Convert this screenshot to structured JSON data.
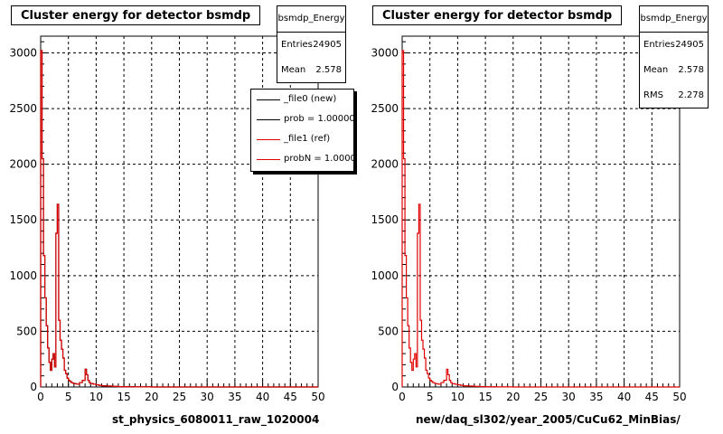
{
  "panels": [
    {
      "title": "Cluster energy for detector bsmdp",
      "x_title": "st_physics_6080011_raw_1020004",
      "stats": {
        "name": "bsmdp_Energy",
        "rows": [
          {
            "key": "Entries",
            "value": "24905"
          },
          {
            "key": "Mean",
            "value": "2.578"
          }
        ]
      },
      "legend": {
        "items": [
          {
            "label": "_file0 (new)",
            "color": "#000000"
          },
          {
            "label": "prob = 1.000000",
            "color": "#000000"
          },
          {
            "label": "_file1 (ref)",
            "color": "#e00000"
          },
          {
            "label": "probN = 1.000000",
            "color": "#e00000"
          }
        ]
      }
    },
    {
      "title": "Cluster energy for detector bsmdp",
      "x_title": "new/daq_sl302/year_2005/CuCu62_MinBias/",
      "stats": {
        "name": "bsmdp_Energy",
        "rows": [
          {
            "key": "Entries",
            "value": "24905"
          },
          {
            "key": "Mean",
            "value": "2.578"
          },
          {
            "key": "RMS",
            "value": "2.278"
          }
        ]
      }
    }
  ],
  "chart_data": [
    {
      "type": "line",
      "title": "Cluster energy for detector bsmdp",
      "xlabel": "st_physics_6080011_raw_1020004",
      "ylabel": "",
      "xlim": [
        0,
        50
      ],
      "ylim": [
        0,
        3150
      ],
      "xticks": [
        0,
        5,
        10,
        15,
        20,
        25,
        30,
        35,
        40,
        45,
        50
      ],
      "yticks": [
        0,
        500,
        1000,
        1500,
        2000,
        2500,
        3000
      ],
      "grid": true,
      "legend": "top-right",
      "series": [
        {
          "name": "_file1 (ref)",
          "color": "#e00000",
          "x": [
            0.25,
            0.5,
            0.75,
            1.0,
            1.25,
            1.5,
            1.75,
            2.0,
            2.25,
            2.5,
            2.75,
            3.0,
            3.25,
            3.5,
            3.75,
            4.0,
            4.25,
            4.5,
            4.75,
            5.0,
            5.25,
            5.5,
            5.75,
            6.0,
            6.5,
            7.0,
            7.5,
            8.0,
            8.25,
            8.5,
            8.75,
            9.0,
            9.5,
            10.0,
            10.5,
            11.0,
            12.0,
            13.0,
            14.0,
            15.0,
            17.0,
            20.0,
            50.0
          ],
          "y": [
            3020,
            2050,
            1180,
            800,
            550,
            350,
            220,
            150,
            250,
            300,
            180,
            1380,
            1640,
            600,
            420,
            340,
            260,
            150,
            120,
            80,
            60,
            50,
            40,
            35,
            30,
            25,
            40,
            60,
            160,
            110,
            60,
            40,
            30,
            25,
            20,
            15,
            10,
            8,
            5,
            3,
            2,
            1,
            0
          ]
        },
        {
          "name": "_file0 (new)",
          "color": "#000000",
          "x": [
            0.25,
            0.5,
            0.75,
            1.0,
            1.25,
            1.5,
            1.75,
            2.0,
            2.25,
            2.5,
            2.75,
            3.0,
            3.25,
            3.5,
            3.75,
            4.0,
            4.25,
            4.5,
            4.75,
            5.0,
            5.25,
            5.5,
            5.75,
            6.0,
            6.5,
            7.0,
            7.5,
            8.0,
            8.25,
            8.5,
            8.75,
            9.0,
            9.5,
            10.0,
            10.5,
            11.0,
            12.0,
            13.0,
            14.0,
            15.0,
            17.0,
            20.0,
            50.0
          ],
          "y": [
            3020,
            2050,
            1180,
            800,
            550,
            350,
            220,
            150,
            250,
            300,
            180,
            1380,
            1640,
            600,
            420,
            340,
            260,
            150,
            120,
            80,
            60,
            50,
            40,
            35,
            30,
            25,
            40,
            60,
            160,
            110,
            60,
            40,
            30,
            25,
            20,
            15,
            10,
            8,
            5,
            3,
            2,
            1,
            0
          ]
        }
      ]
    },
    {
      "type": "line",
      "title": "Cluster energy for detector bsmdp",
      "xlabel": "new/daq_sl302/year_2005/CuCu62_MinBias/",
      "ylabel": "",
      "xlim": [
        0,
        50
      ],
      "ylim": [
        0,
        3150
      ],
      "xticks": [
        0,
        5,
        10,
        15,
        20,
        25,
        30,
        35,
        40,
        45,
        50
      ],
      "yticks": [
        0,
        500,
        1000,
        1500,
        2000,
        2500,
        3000
      ],
      "grid": true,
      "series": [
        {
          "color": "#e00000",
          "x": [
            0.25,
            0.5,
            0.75,
            1.0,
            1.25,
            1.5,
            1.75,
            2.0,
            2.25,
            2.5,
            2.75,
            3.0,
            3.25,
            3.5,
            3.75,
            4.0,
            4.25,
            4.5,
            4.75,
            5.0,
            5.25,
            5.5,
            5.75,
            6.0,
            6.5,
            7.0,
            7.5,
            8.0,
            8.25,
            8.5,
            8.75,
            9.0,
            9.5,
            10.0,
            10.5,
            11.0,
            12.0,
            13.0,
            14.0,
            15.0,
            17.0,
            20.0,
            50.0
          ],
          "y": [
            3020,
            2050,
            1180,
            800,
            550,
            350,
            220,
            150,
            250,
            300,
            180,
            1380,
            1640,
            600,
            420,
            340,
            260,
            150,
            120,
            80,
            60,
            50,
            40,
            35,
            30,
            25,
            40,
            60,
            160,
            110,
            60,
            40,
            30,
            25,
            20,
            15,
            10,
            8,
            5,
            3,
            2,
            1,
            0
          ]
        }
      ]
    }
  ]
}
